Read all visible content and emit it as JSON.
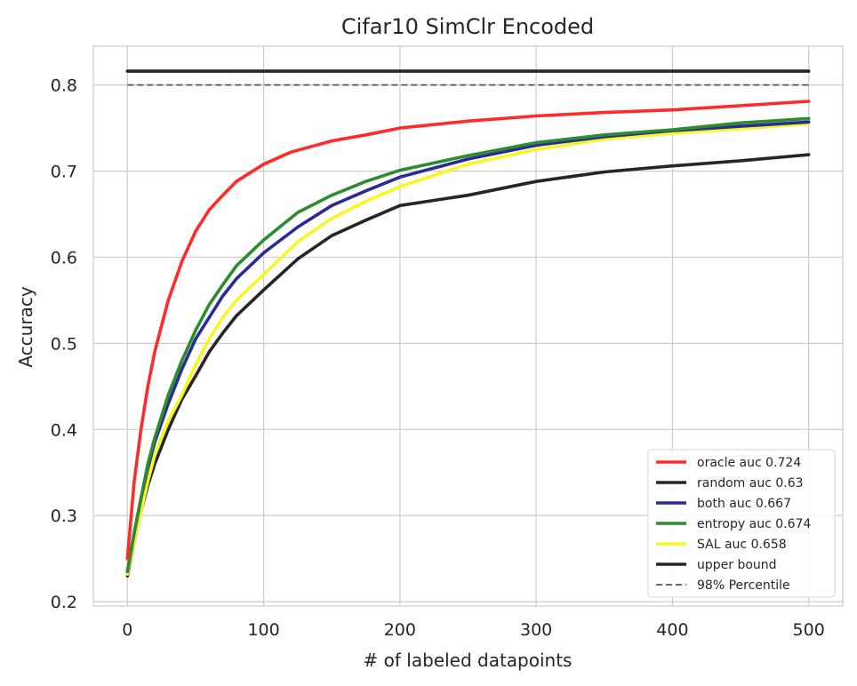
{
  "chart_data": {
    "type": "line",
    "title": "Cifar10 SimClr Encoded",
    "xlabel": "# of labeled datapoints",
    "ylabel": "Accuracy",
    "xlim": [
      -25,
      525
    ],
    "ylim": [
      0.195,
      0.845
    ],
    "xticks": [
      0,
      100,
      200,
      300,
      400,
      500
    ],
    "xtick_labels": [
      "0",
      "100",
      "200",
      "300",
      "400",
      "500"
    ],
    "yticks": [
      0.2,
      0.3,
      0.4,
      0.5,
      0.6,
      0.7,
      0.8
    ],
    "ytick_labels": [
      "0.2",
      "0.3",
      "0.4",
      "0.5",
      "0.6",
      "0.7",
      "0.8"
    ],
    "grid": true,
    "legend_position": "bottom-right",
    "series": [
      {
        "name": "oracle auc 0.724",
        "color": "#ff2a2a",
        "style": "solid",
        "x": [
          0,
          5,
          10,
          15,
          20,
          25,
          30,
          40,
          50,
          60,
          70,
          80,
          100,
          120,
          150,
          175,
          200,
          250,
          300,
          350,
          400,
          450,
          500
        ],
        "y": [
          0.25,
          0.34,
          0.4,
          0.45,
          0.49,
          0.52,
          0.55,
          0.595,
          0.63,
          0.655,
          0.672,
          0.688,
          0.708,
          0.722,
          0.735,
          0.742,
          0.75,
          0.758,
          0.764,
          0.768,
          0.771,
          0.776,
          0.781
        ]
      },
      {
        "name": "random auc 0.63",
        "color": "#262626",
        "style": "solid",
        "x": [
          0,
          5,
          10,
          15,
          20,
          30,
          40,
          50,
          60,
          70,
          80,
          100,
          125,
          150,
          175,
          200,
          225,
          250,
          300,
          350,
          400,
          450,
          500
        ],
        "y": [
          0.23,
          0.27,
          0.305,
          0.335,
          0.36,
          0.4,
          0.435,
          0.462,
          0.49,
          0.512,
          0.532,
          0.562,
          0.598,
          0.625,
          0.643,
          0.66,
          0.666,
          0.672,
          0.688,
          0.699,
          0.706,
          0.712,
          0.719
        ]
      },
      {
        "name": "both auc 0.667",
        "color": "#2b2b95",
        "style": "solid",
        "x": [
          0,
          5,
          10,
          15,
          20,
          30,
          40,
          50,
          60,
          70,
          80,
          100,
          125,
          150,
          175,
          200,
          250,
          300,
          350,
          400,
          450,
          500
        ],
        "y": [
          0.235,
          0.28,
          0.32,
          0.355,
          0.385,
          0.43,
          0.47,
          0.505,
          0.53,
          0.555,
          0.575,
          0.605,
          0.635,
          0.66,
          0.677,
          0.693,
          0.714,
          0.73,
          0.74,
          0.747,
          0.752,
          0.757
        ]
      },
      {
        "name": "entropy auc 0.674",
        "color": "#2e8b2e",
        "style": "solid",
        "x": [
          0,
          5,
          10,
          15,
          20,
          30,
          40,
          50,
          60,
          70,
          80,
          100,
          125,
          150,
          175,
          200,
          250,
          300,
          350,
          400,
          450,
          500
        ],
        "y": [
          0.235,
          0.28,
          0.32,
          0.36,
          0.39,
          0.44,
          0.48,
          0.515,
          0.545,
          0.568,
          0.59,
          0.62,
          0.652,
          0.672,
          0.688,
          0.701,
          0.718,
          0.733,
          0.742,
          0.748,
          0.756,
          0.761
        ]
      },
      {
        "name": "SAL auc 0.658",
        "color": "#f7f724",
        "style": "solid",
        "x": [
          0,
          5,
          10,
          15,
          20,
          30,
          40,
          50,
          60,
          70,
          80,
          100,
          125,
          150,
          175,
          200,
          250,
          300,
          350,
          400,
          450,
          500
        ],
        "y": [
          0.232,
          0.27,
          0.305,
          0.34,
          0.37,
          0.41,
          0.44,
          0.475,
          0.505,
          0.53,
          0.55,
          0.58,
          0.618,
          0.645,
          0.665,
          0.682,
          0.708,
          0.725,
          0.737,
          0.744,
          0.749,
          0.755
        ]
      },
      {
        "name": "upper bound",
        "color": "#262626",
        "style": "solid",
        "x": [
          0,
          500
        ],
        "y": [
          0.816,
          0.816
        ]
      },
      {
        "name": "98% Percentile",
        "color": "#555555",
        "style": "dashed",
        "x": [
          0,
          500
        ],
        "y": [
          0.8,
          0.8
        ]
      }
    ]
  }
}
